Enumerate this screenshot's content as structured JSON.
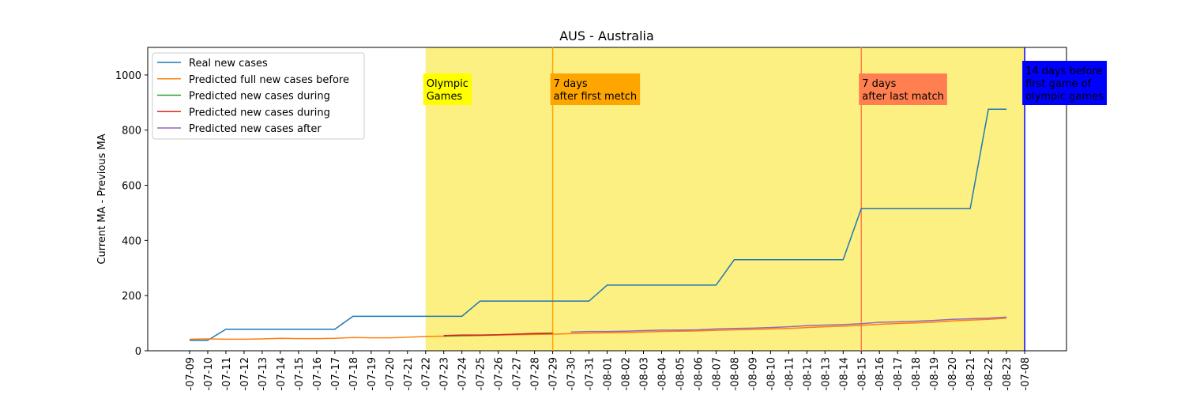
{
  "chart_data": {
    "type": "line",
    "title": "AUS - Australia",
    "y_label": "Current MA - Previous MA",
    "categories": [
      "-07-09",
      "-07-10",
      "-07-11",
      "-07-12",
      "-07-13",
      "-07-14",
      "-07-15",
      "-07-16",
      "-07-17",
      "-07-18",
      "-07-19",
      "-07-20",
      "-07-21",
      "-07-22",
      "-07-23",
      "-07-24",
      "-07-25",
      "-07-26",
      "-07-27",
      "-07-28",
      "-07-29",
      "-07-30",
      "-07-31",
      "-08-01",
      "-08-02",
      "-08-03",
      "-08-04",
      "-08-05",
      "-08-06",
      "-08-07",
      "-08-08",
      "-08-09",
      "-08-10",
      "-08-11",
      "-08-12",
      "-08-13",
      "-08-14",
      "-08-15",
      "-08-16",
      "-08-17",
      "-08-18",
      "-08-19",
      "-08-20",
      "-08-21",
      "-08-22",
      "-08-23",
      "-07-08"
    ],
    "series": [
      {
        "name": "Real new cases",
        "color": "#1f77b4",
        "values": [
          38,
          38,
          78,
          78,
          78,
          78,
          78,
          78,
          78,
          125,
          125,
          125,
          125,
          125,
          125,
          125,
          180,
          180,
          180,
          180,
          180,
          180,
          180,
          238,
          238,
          238,
          238,
          238,
          238,
          238,
          330,
          330,
          330,
          330,
          330,
          330,
          330,
          516,
          516,
          516,
          516,
          516,
          516,
          516,
          876,
          876,
          null
        ]
      },
      {
        "name": "Predicted full new cases before",
        "color": "#ff7f0e",
        "values": [
          42,
          43,
          42,
          42,
          43,
          45,
          44,
          44,
          45,
          48,
          47,
          47,
          49,
          52,
          53,
          54,
          55,
          57,
          58,
          59,
          60,
          62,
          64,
          65,
          66,
          68,
          70,
          71,
          72,
          74,
          76,
          77,
          79,
          81,
          84,
          87,
          89,
          92,
          96,
          99,
          101,
          104,
          108,
          111,
          114,
          118,
          null
        ]
      },
      {
        "name": "Predicted new cases during",
        "color": "#2ca02c",
        "values": [
          null,
          null,
          null,
          null,
          null,
          null,
          null,
          null,
          null,
          null,
          null,
          null,
          null,
          null,
          53,
          55,
          56,
          58,
          60,
          62,
          63,
          null,
          null,
          null,
          null,
          null,
          null,
          null,
          null,
          null,
          null,
          null,
          null,
          null,
          null,
          null,
          null,
          null,
          null,
          null,
          null,
          null,
          null,
          null,
          null,
          null,
          null
        ]
      },
      {
        "name": "Predicted new cases during",
        "color": "#d62728",
        "values": [
          null,
          null,
          null,
          null,
          null,
          null,
          null,
          null,
          null,
          null,
          null,
          null,
          null,
          null,
          55,
          57,
          57,
          58,
          60,
          63,
          64,
          null,
          null,
          null,
          null,
          null,
          null,
          null,
          null,
          null,
          null,
          null,
          null,
          null,
          null,
          null,
          null,
          null,
          null,
          null,
          null,
          null,
          null,
          null,
          null,
          null,
          null
        ]
      },
      {
        "name": "Predicted new cases after",
        "color": "#9467bd",
        "values": [
          null,
          null,
          null,
          null,
          null,
          null,
          null,
          null,
          null,
          null,
          null,
          null,
          null,
          null,
          null,
          null,
          null,
          null,
          null,
          null,
          null,
          68,
          70,
          70,
          71,
          73,
          75,
          75,
          76,
          79,
          81,
          82,
          84,
          87,
          91,
          93,
          95,
          98,
          103,
          105,
          107,
          110,
          114,
          116,
          118,
          122,
          null
        ]
      }
    ],
    "ylim": [
      0,
      1100
    ],
    "yticks": [
      0,
      200,
      400,
      600,
      800,
      1000
    ],
    "legend": "upper left",
    "spans": [
      {
        "from": "-07-22",
        "to": "-07-08",
        "color": "#fdf083"
      }
    ],
    "vlines": [
      {
        "x": "-07-29",
        "color": "#ffa500"
      },
      {
        "x": "-08-15",
        "color": "#ff7f50"
      },
      {
        "x": "-07-08",
        "color": "#0000ff"
      }
    ],
    "annotations": [
      {
        "x": "-07-22",
        "lines": [
          "Olympic",
          "Games"
        ],
        "background": "#ffff00",
        "text_color": "#000000"
      },
      {
        "x": "-07-29",
        "lines": [
          "7 days",
          "after first metch"
        ],
        "background": "#ffa500",
        "text_color": "#000000"
      },
      {
        "x": "-08-15",
        "lines": [
          "7 days",
          "after last match"
        ],
        "background": "#ff7f50",
        "text_color": "#000000"
      },
      {
        "x": "-07-08",
        "lines": [
          "14 days before",
          "first game of",
          "olympic games"
        ],
        "background": "#0000ff",
        "text_color": "#ffffff"
      }
    ]
  }
}
